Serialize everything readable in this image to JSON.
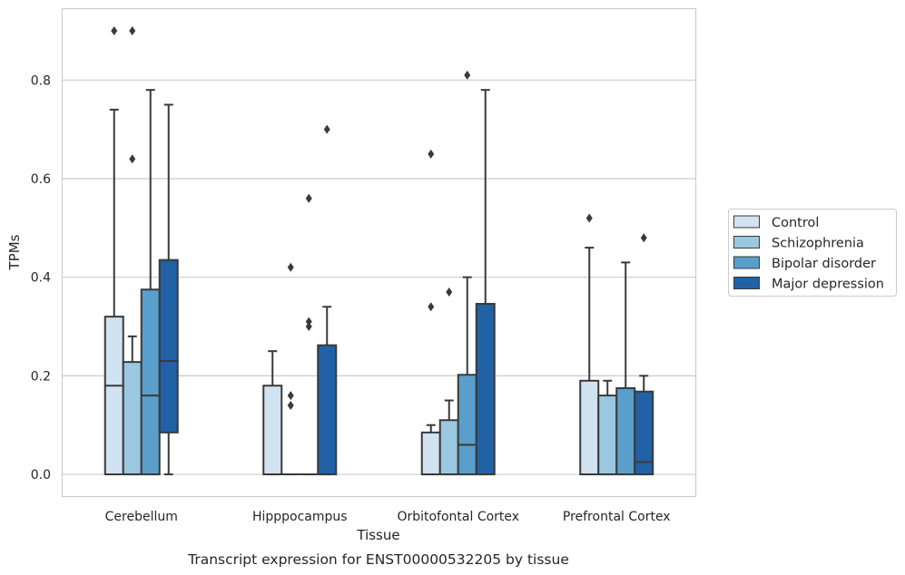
{
  "caption": "Transcript expression for ENST00000532205 by tissue",
  "chart_data": {
    "type": "box",
    "xlabel": "Tissue",
    "ylabel": "TPMs",
    "ylim": [
      -0.045,
      0.945
    ],
    "yticks": [
      0.0,
      0.2,
      0.4,
      0.6,
      0.8
    ],
    "grid": "horizontal",
    "legend_position": "right",
    "categories": [
      "Cerebellum",
      "Hipppocampus",
      "Orbitofontal Cortex",
      "Prefrontal Cortex"
    ],
    "series": [
      {
        "name": "Control",
        "color": "#d1e2f1",
        "boxes": [
          {
            "whislo": 0.0,
            "q1": 0.0,
            "med": 0.18,
            "q3": 0.32,
            "whishi": 0.74,
            "fliers": [
              0.9
            ]
          },
          {
            "whislo": 0.0,
            "q1": 0.0,
            "med": 0.0,
            "q3": 0.18,
            "whishi": 0.25,
            "fliers": []
          },
          {
            "whislo": 0.0,
            "q1": 0.0,
            "med": 0.0,
            "q3": 0.085,
            "whishi": 0.1,
            "fliers": [
              0.34,
              0.65
            ]
          },
          {
            "whislo": 0.0,
            "q1": 0.0,
            "med": 0.0,
            "q3": 0.19,
            "whishi": 0.46,
            "fliers": [
              0.52
            ]
          }
        ]
      },
      {
        "name": "Schizophrenia",
        "color": "#9ac8e0",
        "boxes": [
          {
            "whislo": 0.0,
            "q1": 0.0,
            "med": 0.0,
            "q3": 0.228,
            "whishi": 0.28,
            "fliers": [
              0.64,
              0.9
            ]
          },
          {
            "whislo": 0.0,
            "q1": 0.0,
            "med": 0.0,
            "q3": 0.0,
            "whishi": 0.0,
            "fliers": [
              0.14,
              0.16,
              0.42
            ]
          },
          {
            "whislo": 0.0,
            "q1": 0.0,
            "med": 0.0,
            "q3": 0.11,
            "whishi": 0.15,
            "fliers": [
              0.37
            ]
          },
          {
            "whislo": 0.0,
            "q1": 0.0,
            "med": 0.0,
            "q3": 0.16,
            "whishi": 0.19,
            "fliers": []
          }
        ]
      },
      {
        "name": "Bipolar disorder",
        "color": "#5a9ecb",
        "boxes": [
          {
            "whislo": 0.0,
            "q1": 0.0,
            "med": 0.16,
            "q3": 0.375,
            "whishi": 0.78,
            "fliers": []
          },
          {
            "whislo": 0.0,
            "q1": 0.0,
            "med": 0.0,
            "q3": 0.0,
            "whishi": 0.0,
            "fliers": [
              0.3,
              0.31,
              0.56
            ]
          },
          {
            "whislo": 0.0,
            "q1": 0.0,
            "med": 0.06,
            "q3": 0.202,
            "whishi": 0.4,
            "fliers": [
              0.81
            ]
          },
          {
            "whislo": 0.0,
            "q1": 0.0,
            "med": 0.0,
            "q3": 0.175,
            "whishi": 0.43,
            "fliers": []
          }
        ]
      },
      {
        "name": "Major depression",
        "color": "#2161a5",
        "boxes": [
          {
            "whislo": 0.0,
            "q1": 0.085,
            "med": 0.23,
            "q3": 0.435,
            "whishi": 0.75,
            "fliers": []
          },
          {
            "whislo": 0.0,
            "q1": 0.0,
            "med": 0.0,
            "q3": 0.262,
            "whishi": 0.34,
            "fliers": [
              0.7
            ]
          },
          {
            "whislo": 0.0,
            "q1": 0.0,
            "med": 0.0,
            "q3": 0.346,
            "whishi": 0.78,
            "fliers": []
          },
          {
            "whislo": 0.0,
            "q1": 0.0,
            "med": 0.025,
            "q3": 0.168,
            "whishi": 0.2,
            "fliers": [
              0.48
            ]
          }
        ]
      }
    ]
  }
}
